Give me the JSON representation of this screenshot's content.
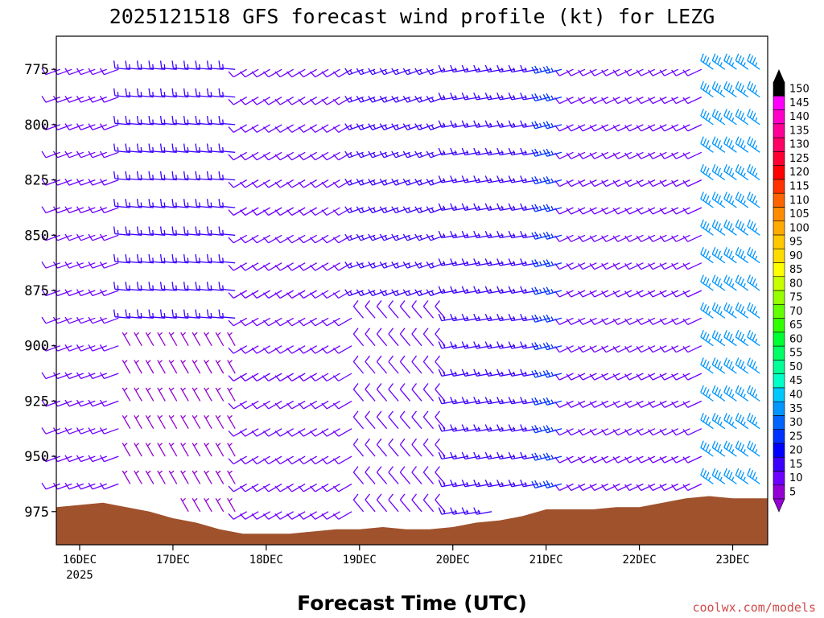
{
  "chart_data": {
    "type": "wind-barb-profile",
    "title": "2025121518 GFS forecast wind profile (kt) for LEZG",
    "xlabel": "Forecast Time (UTC)",
    "ylabel": "",
    "y_ticks": [
      "775",
      "800",
      "825",
      "850",
      "875",
      "900",
      "925",
      "950",
      "975"
    ],
    "y_range_hpa": [
      760,
      990
    ],
    "x_ticks": [
      {
        "label": "16DEC",
        "sub": "2025",
        "time_h": 6
      },
      {
        "label": "17DEC",
        "sub": "",
        "time_h": 30
      },
      {
        "label": "18DEC",
        "sub": "",
        "time_h": 54
      },
      {
        "label": "19DEC",
        "sub": "",
        "time_h": 78
      },
      {
        "label": "20DEC",
        "sub": "",
        "time_h": 102
      },
      {
        "label": "21DEC",
        "sub": "",
        "time_h": 126
      },
      {
        "label": "22DEC",
        "sub": "",
        "time_h": 150
      },
      {
        "label": "23DEC",
        "sub": "",
        "time_h": 174
      }
    ],
    "x_range_h": [
      0,
      183
    ],
    "colorbar_labels": [
      "5",
      "10",
      "15",
      "20",
      "25",
      "30",
      "35",
      "40",
      "45",
      "50",
      "55",
      "60",
      "65",
      "70",
      "75",
      "80",
      "85",
      "90",
      "95",
      "100",
      "105",
      "110",
      "115",
      "120",
      "125",
      "130",
      "135",
      "140",
      "145",
      "150"
    ],
    "colorbar_colors": [
      "#9400d3",
      "#6e00ff",
      "#3c00ff",
      "#0000ff",
      "#0032ff",
      "#0064ff",
      "#0096ff",
      "#00c8ff",
      "#00ffc8",
      "#00ff96",
      "#00ff64",
      "#00ff32",
      "#32ff00",
      "#64ff00",
      "#96ff00",
      "#c8ff00",
      "#ffff00",
      "#ffdc00",
      "#ffc800",
      "#ffaa00",
      "#ff8c00",
      "#ff6400",
      "#ff3200",
      "#ff0000",
      "#ff0032",
      "#ff0064",
      "#ff0096",
      "#ff00c8",
      "#ff00ff",
      "#000000"
    ],
    "terrain_color": "#a0522d",
    "terrain_hpa": [
      {
        "t": 0,
        "p": 973
      },
      {
        "t": 6,
        "p": 972
      },
      {
        "t": 12,
        "p": 971
      },
      {
        "t": 18,
        "p": 973
      },
      {
        "t": 24,
        "p": 975
      },
      {
        "t": 30,
        "p": 978
      },
      {
        "t": 36,
        "p": 980
      },
      {
        "t": 42,
        "p": 983
      },
      {
        "t": 48,
        "p": 985
      },
      {
        "t": 54,
        "p": 985
      },
      {
        "t": 60,
        "p": 985
      },
      {
        "t": 66,
        "p": 984
      },
      {
        "t": 72,
        "p": 983
      },
      {
        "t": 78,
        "p": 983
      },
      {
        "t": 84,
        "p": 982
      },
      {
        "t": 90,
        "p": 983
      },
      {
        "t": 96,
        "p": 983
      },
      {
        "t": 102,
        "p": 982
      },
      {
        "t": 108,
        "p": 980
      },
      {
        "t": 114,
        "p": 979
      },
      {
        "t": 120,
        "p": 977
      },
      {
        "t": 126,
        "p": 974
      },
      {
        "t": 132,
        "p": 974
      },
      {
        "t": 138,
        "p": 974
      },
      {
        "t": 144,
        "p": 973
      },
      {
        "t": 150,
        "p": 973
      },
      {
        "t": 156,
        "p": 971
      },
      {
        "t": 162,
        "p": 969
      },
      {
        "t": 168,
        "p": 968
      },
      {
        "t": 174,
        "p": 969
      },
      {
        "t": 183,
        "p": 969
      }
    ],
    "barb_levels_hpa": [
      775,
      787.5,
      800,
      812.5,
      825,
      837.5,
      850,
      862.5,
      875,
      887.5,
      900,
      912.5,
      925,
      937.5,
      950,
      962.5,
      975
    ],
    "barb_time_step_h": 3,
    "regimes": [
      {
        "t0": 0,
        "t1": 18,
        "p0": 760,
        "p1": 990,
        "dir": 250,
        "spd": 10
      },
      {
        "t0": 18,
        "t1": 48,
        "p0": 760,
        "p1": 900,
        "dir": 275,
        "spd": 15
      },
      {
        "t0": 18,
        "t1": 48,
        "p0": 900,
        "p1": 990,
        "dir": 330,
        "spd": 5
      },
      {
        "t0": 48,
        "t1": 78,
        "p0": 760,
        "p1": 990,
        "dir": 240,
        "spd": 10
      },
      {
        "t0": 78,
        "t1": 102,
        "p0": 760,
        "p1": 880,
        "dir": 250,
        "spd": 15
      },
      {
        "t0": 78,
        "t1": 102,
        "p0": 880,
        "p1": 990,
        "dir": 320,
        "spd": 10
      },
      {
        "t0": 102,
        "t1": 126,
        "p0": 760,
        "p1": 990,
        "dir": 260,
        "spd": 15
      },
      {
        "t0": 126,
        "t1": 132,
        "p0": 760,
        "p1": 990,
        "dir": 255,
        "spd": 25
      },
      {
        "t0": 132,
        "t1": 168,
        "p0": 760,
        "p1": 990,
        "dir": 245,
        "spd": 10
      },
      {
        "t0": 168,
        "t1": 183,
        "p0": 760,
        "p1": 990,
        "dir": 305,
        "spd": 35
      }
    ],
    "source_label": "coolwx.com/models"
  }
}
